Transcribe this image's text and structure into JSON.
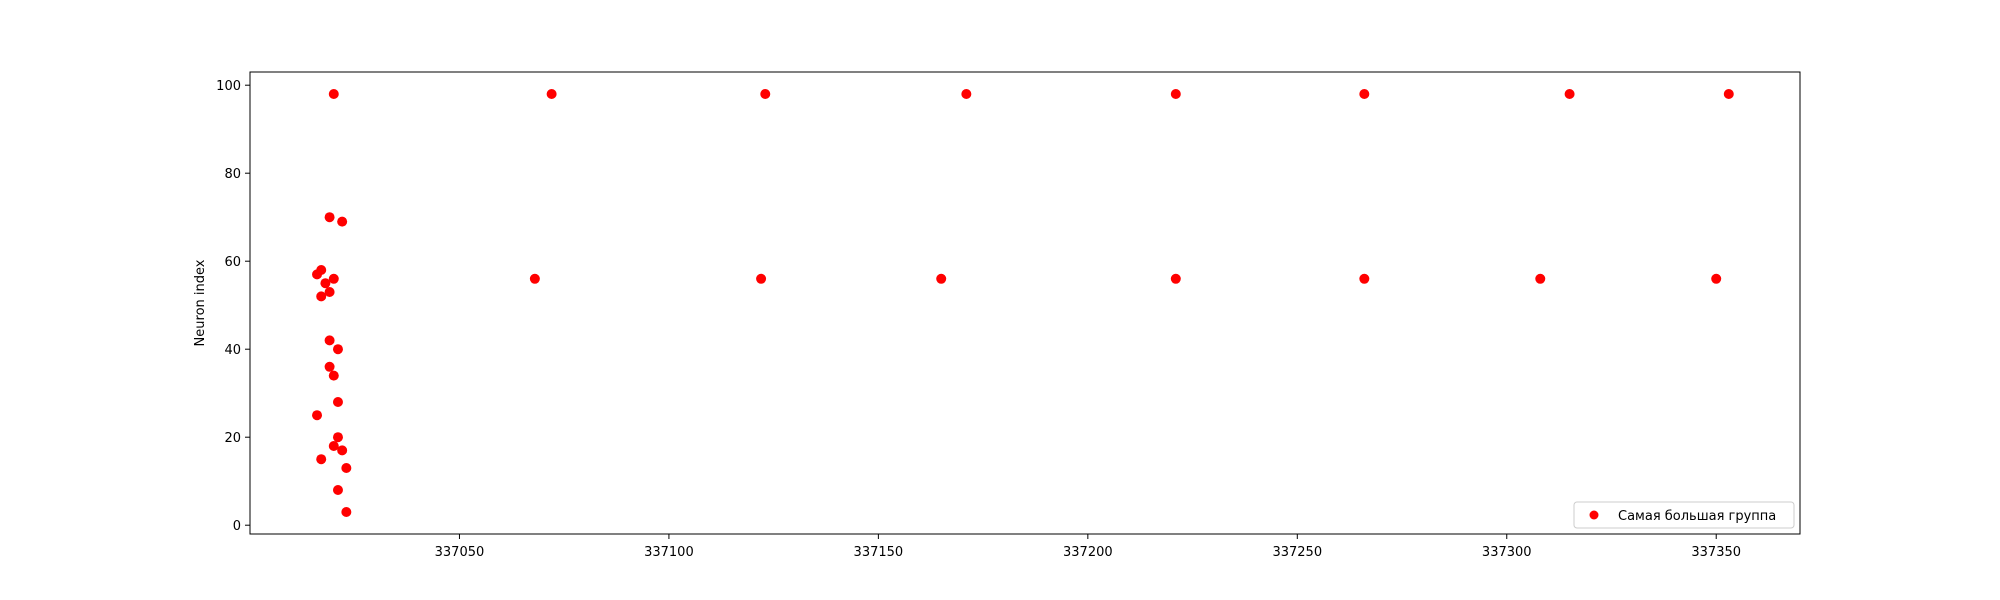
{
  "chart_data": {
    "type": "scatter",
    "title": "",
    "xlabel": "",
    "ylabel": "Neuron index",
    "xlim": [
      337000,
      337370
    ],
    "ylim": [
      -2,
      103
    ],
    "xticks": [
      337050,
      337100,
      337150,
      337200,
      337250,
      337300,
      337350
    ],
    "yticks": [
      0,
      20,
      40,
      60,
      80,
      100
    ],
    "grid": false,
    "legend_position": "lower-right",
    "series": [
      {
        "name": "Самая большая группа",
        "color": "#ff0000",
        "points": [
          {
            "x": 337020,
            "y": 98
          },
          {
            "x": 337072,
            "y": 98
          },
          {
            "x": 337123,
            "y": 98
          },
          {
            "x": 337171,
            "y": 98
          },
          {
            "x": 337221,
            "y": 98
          },
          {
            "x": 337266,
            "y": 98
          },
          {
            "x": 337315,
            "y": 98
          },
          {
            "x": 337353,
            "y": 98
          },
          {
            "x": 337019,
            "y": 70
          },
          {
            "x": 337022,
            "y": 69
          },
          {
            "x": 337016,
            "y": 57
          },
          {
            "x": 337017,
            "y": 58
          },
          {
            "x": 337018,
            "y": 55
          },
          {
            "x": 337020,
            "y": 56
          },
          {
            "x": 337019,
            "y": 53
          },
          {
            "x": 337017,
            "y": 52
          },
          {
            "x": 337019,
            "y": 42
          },
          {
            "x": 337021,
            "y": 40
          },
          {
            "x": 337019,
            "y": 36
          },
          {
            "x": 337020,
            "y": 34
          },
          {
            "x": 337021,
            "y": 28
          },
          {
            "x": 337016,
            "y": 25
          },
          {
            "x": 337021,
            "y": 20
          },
          {
            "x": 337020,
            "y": 18
          },
          {
            "x": 337022,
            "y": 17
          },
          {
            "x": 337017,
            "y": 15
          },
          {
            "x": 337023,
            "y": 13
          },
          {
            "x": 337021,
            "y": 8
          },
          {
            "x": 337023,
            "y": 3
          },
          {
            "x": 337068,
            "y": 56
          },
          {
            "x": 337122,
            "y": 56
          },
          {
            "x": 337165,
            "y": 56
          },
          {
            "x": 337221,
            "y": 56
          },
          {
            "x": 337266,
            "y": 56
          },
          {
            "x": 337308,
            "y": 56
          },
          {
            "x": 337350,
            "y": 56
          }
        ]
      }
    ]
  }
}
